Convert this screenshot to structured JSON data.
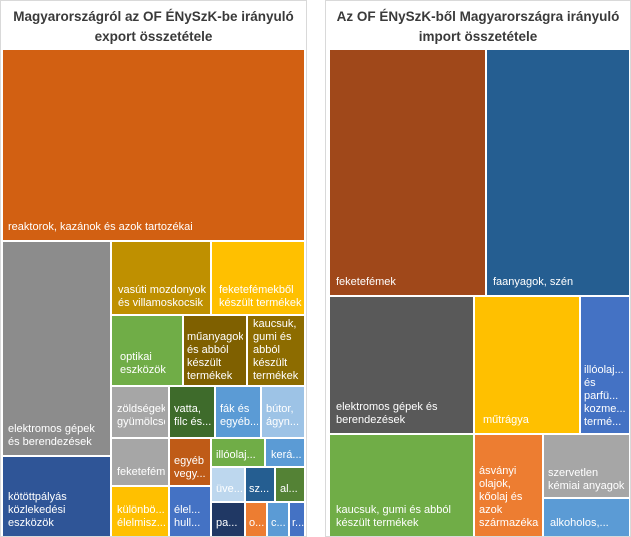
{
  "charts": [
    {
      "title_line1": "Magyarországról az OF ÉNySzK-be irányuló",
      "title_line2": "export összetétele",
      "chart_data": {
        "type": "treemap",
        "title": "Magyarországról az OF ÉNySzK-be irányuló export összetétele",
        "items": [
          {
            "label": "reaktorok, kazánok és azok tartozékai",
            "color": "#d26012",
            "value": 30.2
          },
          {
            "label": "elektromos gépek és berendezések",
            "color": "#8c8c8c",
            "value": 11.8
          },
          {
            "label": "kötöttpályás közlekedési eszközök",
            "color": "#2f5597",
            "value": 5.1
          },
          {
            "label": "vasúti mozdonyok és villamoskocsik",
            "color": "#bf9000",
            "value": 5.2
          },
          {
            "label": "feketefémekből készült termékek",
            "color": "#ffc000",
            "value": 5.3
          },
          {
            "label": "optikai eszközök",
            "color": "#70ad47",
            "value": 3.3
          },
          {
            "label": "műanyagok és abból készült termékek",
            "color": "#7f6000",
            "value": 3.2
          },
          {
            "label": "kaucsuk, gumi és abból készült termékek",
            "color": "#8d6c00",
            "value": 3.3
          },
          {
            "label": "zöldségek, gyümölcsök",
            "color": "#a6a6a6",
            "value": 2.5
          },
          {
            "label": "vatta, filc és...",
            "color": "#3e6b2b",
            "value": 1.8
          },
          {
            "label": "fák és egyéb...",
            "color": "#5b9bd5",
            "value": 1.8
          },
          {
            "label": "bútor, ágyn...",
            "color": "#9dc3e6",
            "value": 1.8
          },
          {
            "label": "feketefémek",
            "color": "#a6a6a6",
            "value": 1.6
          },
          {
            "label": "egyéb vegy...",
            "color": "#bf5b17",
            "value": 1.6
          },
          {
            "label": "illóolaj...",
            "color": "#70ad47",
            "value": 1.3
          },
          {
            "label": "kerá...",
            "color": "#5b9bd5",
            "value": 1.0
          },
          {
            "label": "üve...",
            "color": "#bdd7ee",
            "value": 0.75
          },
          {
            "label": "sz...",
            "color": "#255e91",
            "value": 0.55
          },
          {
            "label": "al...",
            "color": "#548235",
            "value": 0.55
          },
          {
            "label": "különbö... élelmisz...",
            "color": "#ffc000",
            "value": 1.6
          },
          {
            "label": "élel... hull...",
            "color": "#4472c4",
            "value": 1.1
          },
          {
            "label": "pa...",
            "color": "#203864",
            "value": 1.0
          },
          {
            "label": "o...",
            "color": "#ed7d31",
            "value": 0.45
          },
          {
            "label": "c...",
            "color": "#5b9bd5",
            "value": 0.45
          },
          {
            "label": "r...",
            "color": "#4472c4",
            "value": 0.4
          }
        ]
      },
      "tiles": [
        {
          "label": "reaktorok, kazánok és azok tartozékai",
          "color": "#d26012",
          "r": [
            2,
            49,
            301,
            190
          ],
          "lx": 5,
          "lb": 6,
          "w": 290
        },
        {
          "label": "elektromos gépek és berendezések",
          "color": "#8c8c8c",
          "r": [
            2,
            241,
            107,
            213
          ],
          "lx": 5,
          "lb": 6,
          "w": 100
        },
        {
          "label": "kötöttpályás közlekedési eszközök",
          "color": "#2f5597",
          "r": [
            2,
            456,
            107,
            79
          ],
          "lx": 5,
          "lb": 6,
          "w": 100
        },
        {
          "label": "vasúti mozdonyok és villamoskocsik",
          "color": "#bf9000",
          "r": [
            111,
            241,
            98,
            72
          ],
          "lx": 6,
          "lb": 4,
          "w": 90
        },
        {
          "label": "feketefémekből készült termékek",
          "color": "#ffc000",
          "r": [
            211,
            241,
            92,
            72
          ],
          "lx": 7,
          "lb": 4,
          "w": 86
        },
        {
          "label": "optikai eszközök",
          "color": "#70ad47",
          "r": [
            111,
            315,
            70,
            69
          ],
          "lx": 8,
          "lb": 8,
          "w": 56
        },
        {
          "label": "műanyagok és abból készült termékek",
          "color": "#7f6000",
          "r": [
            183,
            315,
            62,
            69
          ],
          "lx": 3,
          "lb": 2,
          "w": 56
        },
        {
          "label": "kaucsuk, gumi és abból készült termékek",
          "color": "#8d6c00",
          "r": [
            247,
            315,
            56,
            69
          ],
          "lx": 5,
          "lb": 2,
          "w": 48
        },
        {
          "label": "zöldségek, gyümölcsök",
          "color": "#a6a6a6",
          "r": [
            111,
            386,
            56,
            50
          ],
          "lx": 5,
          "lb": 8,
          "w": 48
        },
        {
          "label": "vatta, filc és...",
          "color": "#3e6b2b",
          "r": [
            169,
            386,
            44,
            50
          ],
          "lx": 4,
          "lb": 8,
          "w": 38
        },
        {
          "label": "fák és egyéb...",
          "color": "#5b9bd5",
          "r": [
            215,
            386,
            44,
            50
          ],
          "lx": 4,
          "lb": 8,
          "w": 38
        },
        {
          "label": "bútor, ágyn...",
          "color": "#9dc3e6",
          "r": [
            261,
            386,
            42,
            50
          ],
          "lx": 4,
          "lb": 8,
          "w": 36
        },
        {
          "label": "feketefémek",
          "color": "#a6a6a6",
          "r": [
            111,
            438,
            56,
            46
          ],
          "lx": 5,
          "lb": 6,
          "w": 48
        },
        {
          "label": "egyéb vegy...",
          "color": "#bf5b17",
          "r": [
            169,
            438,
            40,
            46
          ],
          "lx": 4,
          "lb": 4,
          "w": 34
        },
        {
          "label": "illóolaj...",
          "color": "#70ad47",
          "r": [
            211,
            438,
            52,
            27
          ],
          "lx": 4,
          "lb": 4,
          "w": 46
        },
        {
          "label": "kerá...",
          "color": "#5b9bd5",
          "r": [
            265,
            438,
            38,
            27
          ],
          "lx": 5,
          "lb": 4,
          "w": 32
        },
        {
          "label": "üve...",
          "color": "#bdd7ee",
          "r": [
            211,
            467,
            32,
            33
          ],
          "lx": 4,
          "lb": 5,
          "w": 28
        },
        {
          "label": "sz...",
          "color": "#255e91",
          "r": [
            245,
            467,
            28,
            33
          ],
          "lx": 3,
          "lb": 5,
          "w": 24
        },
        {
          "label": "al...",
          "color": "#548235",
          "r": [
            275,
            467,
            28,
            33
          ],
          "lx": 4,
          "lb": 5,
          "w": 24
        },
        {
          "label": "különbö... élelmisz...",
          "color": "#ffc000",
          "r": [
            111,
            486,
            56,
            49
          ],
          "lx": 5,
          "lb": 6,
          "w": 48
        },
        {
          "label": "élel... hull...",
          "color": "#4472c4",
          "r": [
            169,
            486,
            40,
            49
          ],
          "lx": 4,
          "lb": 6,
          "w": 34
        },
        {
          "label": "pa...",
          "color": "#203864",
          "r": [
            211,
            502,
            32,
            33
          ],
          "lx": 4,
          "lb": 6,
          "w": 28
        },
        {
          "label": "o...",
          "color": "#ed7d31",
          "r": [
            245,
            502,
            20,
            33
          ],
          "lx": 3,
          "lb": 6,
          "w": 16
        },
        {
          "label": "c...",
          "color": "#5b9bd5",
          "r": [
            267,
            502,
            20,
            33
          ],
          "lx": 3,
          "lb": 6,
          "w": 16
        },
        {
          "label": "r...",
          "color": "#4472c4",
          "r": [
            289,
            502,
            14,
            33
          ],
          "lx": 2,
          "lb": 6,
          "w": 12
        }
      ]
    },
    {
      "title_line1": "Az OF ÉNySzK-ből Magyarországra irányuló",
      "title_line2": "import összetétele",
      "chart_data": {
        "type": "treemap",
        "title": "Az OF ÉNySzK-ből Magyarországra irányuló import összetétele",
        "items": [
          {
            "label": "feketefémek",
            "color": "#a0481a",
            "value": 26.2
          },
          {
            "label": "faanyagok, szén",
            "color": "#255e91",
            "value": 25.3
          },
          {
            "label": "elektromos gépek és berendezések",
            "color": "#595959",
            "value": 11.1
          },
          {
            "label": "műtrágya",
            "color": "#ffc000",
            "value": 7.7
          },
          {
            "label": "illóolaj... és parfü... kozme... termé...",
            "color": "#4472c4",
            "value": 3.8
          },
          {
            "label": "kaucsuk, gumi és abból készült termékek",
            "color": "#70ad47",
            "value": 11.1
          },
          {
            "label": "ásványi olajok, kőolaj és azok származékai",
            "color": "#ed7d31",
            "value": 5.3
          },
          {
            "label": "szervetlen kémiai anyagok",
            "color": "#a6a6a6",
            "value": 4.7
          },
          {
            "label": "alkoholos,...",
            "color": "#5b9bd5",
            "value": 3.0
          }
        ]
      },
      "tiles": [
        {
          "label": "feketefémek",
          "color": "#a0481a",
          "r": [
            4,
            49,
            155,
            245
          ],
          "lx": 6,
          "lb": 6,
          "w": 144
        },
        {
          "label": "faanyagok, szén",
          "color": "#255e91",
          "r": [
            161,
            49,
            142,
            245
          ],
          "lx": 6,
          "lb": 6,
          "w": 130
        },
        {
          "label": "elektromos gépek és berendezések",
          "color": "#595959",
          "r": [
            4,
            296,
            143,
            136
          ],
          "lx": 6,
          "lb": 6,
          "w": 130
        },
        {
          "label": "műtrágya",
          "color": "#ffc000",
          "r": [
            149,
            296,
            104,
            136
          ],
          "lx": 8,
          "lb": 6,
          "w": 90
        },
        {
          "label": "illóolaj... és parfü... kozme... termé...",
          "color": "#4472c4",
          "r": [
            255,
            296,
            48,
            136
          ],
          "lx": 3,
          "lb": 4,
          "w": 42
        },
        {
          "label": "kaucsuk, gumi és abból készült termékek",
          "color": "#70ad47",
          "r": [
            4,
            434,
            143,
            101
          ],
          "lx": 6,
          "lb": 6,
          "w": 130
        },
        {
          "label": "ásványi olajok, kőolaj és azok származékai",
          "color": "#ed7d31",
          "r": [
            149,
            434,
            67,
            101
          ],
          "lx": 4,
          "lb": 6,
          "w": 60
        },
        {
          "label": "szervetlen kémiai anyagok",
          "color": "#a6a6a6",
          "r": [
            218,
            434,
            85,
            62
          ],
          "lx": 4,
          "lb": 4,
          "w": 78
        },
        {
          "label": "alkoholos,...",
          "color": "#5b9bd5",
          "r": [
            218,
            498,
            85,
            37
          ],
          "lx": 6,
          "lb": 6,
          "w": 76
        }
      ]
    }
  ]
}
